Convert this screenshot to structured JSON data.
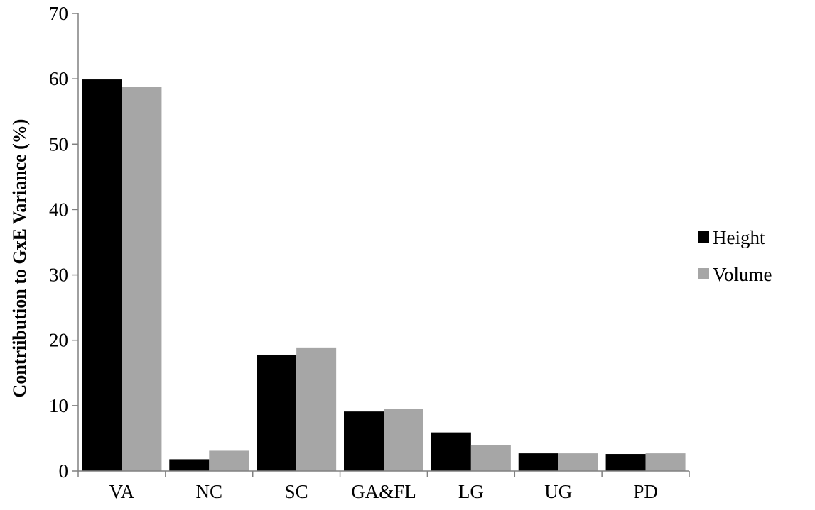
{
  "chart_data": {
    "type": "bar",
    "title": "",
    "xlabel": "",
    "ylabel": "Contriibution to GxE Variance (%)",
    "ylim": [
      0,
      70
    ],
    "yticks": [
      0,
      10,
      20,
      30,
      40,
      50,
      60,
      70
    ],
    "grid": false,
    "legend_position": "right",
    "categories": [
      "VA",
      "NC",
      "SC",
      "GA&FL",
      "LG",
      "UG",
      "PD"
    ],
    "series": [
      {
        "name": "Height",
        "color": "#000000",
        "values": [
          59.9,
          1.8,
          17.8,
          9.1,
          5.9,
          2.7,
          2.6
        ]
      },
      {
        "name": "Volume",
        "color": "#a6a6a6",
        "values": [
          58.8,
          3.1,
          18.9,
          9.5,
          4.0,
          2.7,
          2.7
        ]
      }
    ]
  }
}
